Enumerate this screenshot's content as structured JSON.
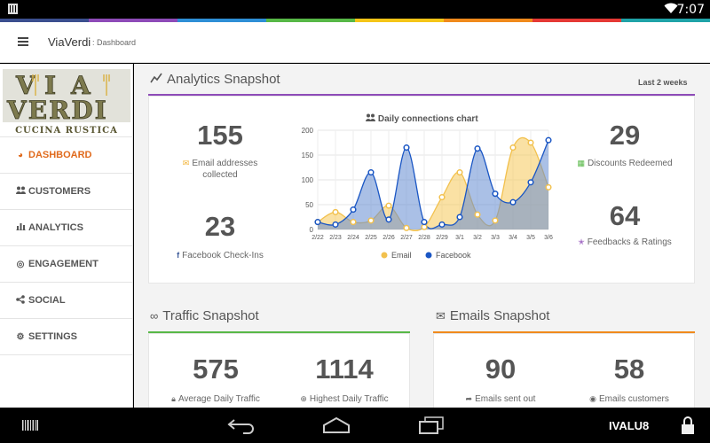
{
  "status_bar": {
    "time": "7:07"
  },
  "rainbow": [
    "#3b4f8f",
    "#8e4bb8",
    "#2e8fd6",
    "#57b847",
    "#f5c518",
    "#f08a1c",
    "#e53935",
    "#1fa3a8"
  ],
  "topbar": {
    "app_name": "ViaVerdi",
    "breadcrumb": ": Dashboard"
  },
  "logo": {
    "line1": [
      "V",
      "I",
      "A"
    ],
    "line2": "VERDI",
    "tagline": "CUCINA RUSTICA"
  },
  "sidebar": {
    "items": [
      {
        "label": "DASHBOARD",
        "icon": "dashboard-icon",
        "active": true
      },
      {
        "label": "CUSTOMERS",
        "icon": "users-icon"
      },
      {
        "label": "ANALYTICS",
        "icon": "bar-chart-icon"
      },
      {
        "label": "ENGAGEMENT",
        "icon": "bullseye-icon"
      },
      {
        "label": "SOCIAL",
        "icon": "share-icon"
      },
      {
        "label": "SETTINGS",
        "icon": "gears-icon"
      }
    ]
  },
  "analytics": {
    "title": "Analytics Snapshot",
    "range": "Last 2 weeks",
    "accent": "#8e4bb8",
    "email_count": "155",
    "email_label": "Email addresses collected",
    "checkins_count": "23",
    "checkins_label": "Facebook Check-Ins",
    "discounts_count": "29",
    "discounts_label": "Discounts Redeemed",
    "feedback_count": "64",
    "feedback_label": "Feedbacks & Ratings"
  },
  "chart_data": {
    "type": "area",
    "title": "Daily connections chart",
    "categories": [
      "2/22",
      "2/23",
      "2/24",
      "2/25",
      "2/26",
      "2/27",
      "2/28",
      "2/29",
      "3/1",
      "3/2",
      "3/3",
      "3/4",
      "3/5",
      "3/6"
    ],
    "ylim": [
      0,
      200
    ],
    "yticks": [
      0,
      50,
      100,
      150,
      200
    ],
    "grid": true,
    "legend_position": "bottom",
    "series": [
      {
        "name": "Email",
        "color": "#f2c14e",
        "fill": "rgba(245,200,90,0.55)",
        "values": [
          15,
          35,
          15,
          18,
          48,
          3,
          5,
          65,
          115,
          30,
          18,
          165,
          175,
          85
        ]
      },
      {
        "name": "Facebook",
        "color": "#1a56c4",
        "fill": "rgba(100,140,210,0.55)",
        "values": [
          15,
          10,
          40,
          115,
          20,
          165,
          15,
          10,
          25,
          163,
          72,
          55,
          95,
          180
        ]
      }
    ]
  },
  "traffic": {
    "title": "Traffic Snapshot",
    "accent": "#57b847",
    "avg_value": "575",
    "avg_label": "Average Daily Traffic",
    "high_value": "1114",
    "high_label": "Highest Daily Traffic"
  },
  "emails": {
    "title": "Emails Snapshot",
    "accent": "#f08a1c",
    "sent_value": "90",
    "sent_label": "Emails sent out",
    "customers_value": "58",
    "customers_label": "Emails customers"
  },
  "navbar": {
    "brand": "IVALU8"
  }
}
